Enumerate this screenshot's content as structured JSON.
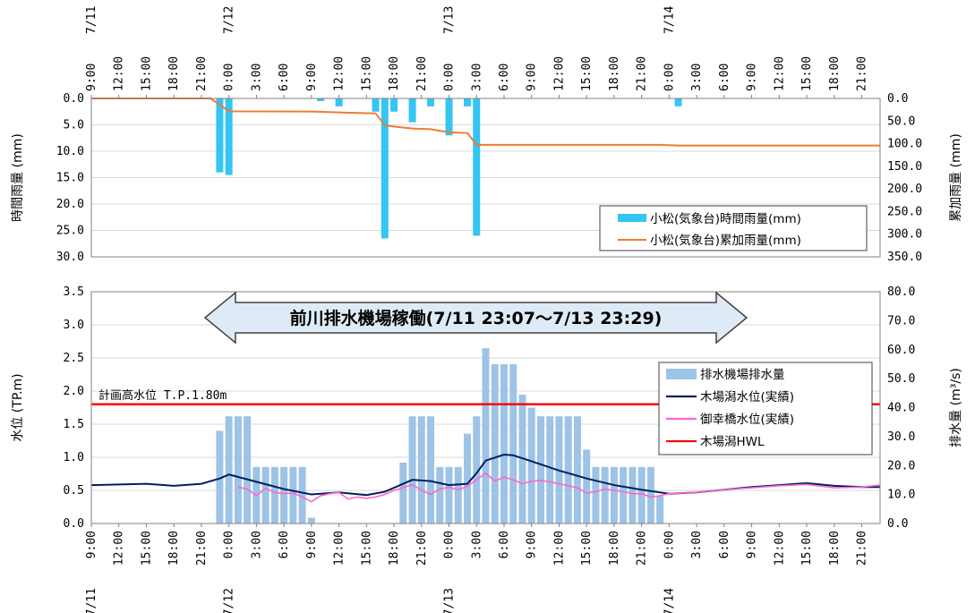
{
  "chart_data": [
    {
      "type": "bar",
      "panel": "rainfall",
      "y_left_label": "時間雨量 (mm)",
      "y_right_label": "累加雨量 (mm)",
      "y_left_ticks": [
        "0.0",
        "5.0",
        "10.0",
        "15.0",
        "20.0",
        "25.0",
        "30.0"
      ],
      "y_right_ticks": [
        "0.0",
        "50.0",
        "100.0",
        "150.0",
        "200.0",
        "250.0",
        "300.0",
        "350.0"
      ],
      "ylim_left": [
        0,
        30
      ],
      "ylim_right": [
        0,
        350
      ],
      "y_left_inverted": true,
      "y_right_inverted": true,
      "x_time_labels": [
        "9:00",
        "12:00",
        "15:00",
        "18:00",
        "21:00",
        "0:00",
        "3:00",
        "6:00",
        "9:00",
        "12:00",
        "15:00",
        "18:00",
        "21:00",
        "0:00",
        "3:00",
        "6:00",
        "9:00",
        "12:00",
        "15:00",
        "18:00",
        "21:00",
        "0:00",
        "3:00",
        "6:00",
        "9:00",
        "12:00",
        "15:00",
        "18:00",
        "21:00"
      ],
      "x_date_labels": [
        {
          "label": "7/11",
          "at": "7/11 9:00"
        },
        {
          "label": "7/12",
          "at": "7/12 0:00"
        },
        {
          "label": "7/13",
          "at": "7/13 0:00"
        },
        {
          "label": "7/14",
          "at": "7/14 0:00"
        }
      ],
      "x_range": [
        "7/11 9:00",
        "7/14 23:00"
      ],
      "legend": [
        "小松(気象台)時間雨量(mm)",
        "小松(気象台)累加雨量(mm)"
      ],
      "legend_position": "bottom-right",
      "series": [
        {
          "name": "小松(気象台)時間雨量(mm)",
          "kind": "bar",
          "color": "#33c5f3",
          "points": [
            {
              "x": "7/11 23:00",
              "y": 14.0
            },
            {
              "x": "7/12 0:00",
              "y": 14.5
            },
            {
              "x": "7/12 10:00",
              "y": 0.5
            },
            {
              "x": "7/12 12:00",
              "y": 1.5
            },
            {
              "x": "7/12 16:00",
              "y": 2.5
            },
            {
              "x": "7/12 17:00",
              "y": 26.5
            },
            {
              "x": "7/12 18:00",
              "y": 2.5
            },
            {
              "x": "7/12 20:00",
              "y": 4.5
            },
            {
              "x": "7/12 22:00",
              "y": 1.5
            },
            {
              "x": "7/13 0:00",
              "y": 7.0
            },
            {
              "x": "7/13 2:00",
              "y": 1.5
            },
            {
              "x": "7/13 3:00",
              "y": 26.0
            },
            {
              "x": "7/14 1:00",
              "y": 1.5
            }
          ]
        },
        {
          "name": "小松(気象台)累加雨量(mm)",
          "kind": "line",
          "color": "#ed7d31",
          "points": [
            {
              "x": "7/11 9:00",
              "y": 0
            },
            {
              "x": "7/11 22:00",
              "y": 0
            },
            {
              "x": "7/11 23:00",
              "y": 14
            },
            {
              "x": "7/12 0:00",
              "y": 28.5
            },
            {
              "x": "7/12 9:00",
              "y": 29
            },
            {
              "x": "7/12 12:00",
              "y": 31
            },
            {
              "x": "7/12 16:00",
              "y": 33
            },
            {
              "x": "7/12 17:00",
              "y": 59.5
            },
            {
              "x": "7/12 18:00",
              "y": 62
            },
            {
              "x": "7/12 20:00",
              "y": 66.5
            },
            {
              "x": "7/12 22:00",
              "y": 68
            },
            {
              "x": "7/13 0:00",
              "y": 75
            },
            {
              "x": "7/13 2:00",
              "y": 76.5
            },
            {
              "x": "7/13 3:00",
              "y": 102.5
            },
            {
              "x": "7/13 23:00",
              "y": 102.5
            },
            {
              "x": "7/14 1:00",
              "y": 104
            },
            {
              "x": "7/14 23:00",
              "y": 104
            }
          ]
        }
      ]
    },
    {
      "type": "bar",
      "panel": "water_level",
      "y_left_label": "水位 (TP.m)",
      "y_right_label": "排水量 (m³/s)",
      "y_left_ticks": [
        "0.0",
        "0.5",
        "1.0",
        "1.5",
        "2.0",
        "2.5",
        "3.0",
        "3.5"
      ],
      "y_right_ticks": [
        "0.0",
        "10.0",
        "20.0",
        "30.0",
        "40.0",
        "50.0",
        "60.0",
        "70.0",
        "80.0"
      ],
      "ylim_left": [
        0,
        3.5
      ],
      "ylim_right": [
        0,
        80
      ],
      "x_time_labels": [
        "9:00",
        "12:00",
        "15:00",
        "18:00",
        "21:00",
        "0:00",
        "3:00",
        "6:00",
        "9:00",
        "12:00",
        "15:00",
        "18:00",
        "21:00",
        "0:00",
        "3:00",
        "6:00",
        "9:00",
        "12:00",
        "15:00",
        "18:00",
        "21:00",
        "0:00",
        "3:00",
        "6:00",
        "9:00",
        "12:00",
        "15:00",
        "18:00",
        "21:00"
      ],
      "x_date_labels": [
        {
          "label": "7/11",
          "at": "7/11 9:00"
        },
        {
          "label": "7/12",
          "at": "7/12 0:00"
        },
        {
          "label": "7/13",
          "at": "7/13 0:00"
        },
        {
          "label": "7/14",
          "at": "7/14 0:00"
        }
      ],
      "x_range": [
        "7/11 9:00",
        "7/14 23:00"
      ],
      "annotation_banner": "前川排水機場稼働(7/11 23:07～7/13 23:29)",
      "annotation_hwl": "計画高水位 T.P.1.80m",
      "legend": [
        "排水機場排水量",
        "木場潟水位(実績)",
        "御幸橋水位(実績)",
        "木場潟HWL"
      ],
      "legend_position": "right",
      "series": [
        {
          "name": "排水機場排水量",
          "kind": "bar",
          "axis": "right",
          "color": "#9dc3e6",
          "points": [
            {
              "x": "7/11 23:00",
              "y": 32
            },
            {
              "x": "7/12 0:00",
              "y": 37
            },
            {
              "x": "7/12 1:00",
              "y": 37
            },
            {
              "x": "7/12 2:00",
              "y": 37
            },
            {
              "x": "7/12 3:00",
              "y": 19.5
            },
            {
              "x": "7/12 4:00",
              "y": 19.5
            },
            {
              "x": "7/12 5:00",
              "y": 19.5
            },
            {
              "x": "7/12 6:00",
              "y": 19.5
            },
            {
              "x": "7/12 7:00",
              "y": 19.5
            },
            {
              "x": "7/12 8:00",
              "y": 19.5
            },
            {
              "x": "7/12 9:00",
              "y": 2
            },
            {
              "x": "7/12 19:00",
              "y": 21
            },
            {
              "x": "7/12 20:00",
              "y": 37
            },
            {
              "x": "7/12 21:00",
              "y": 37
            },
            {
              "x": "7/12 22:00",
              "y": 37
            },
            {
              "x": "7/12 23:00",
              "y": 19.5
            },
            {
              "x": "7/13 0:00",
              "y": 19.5
            },
            {
              "x": "7/13 1:00",
              "y": 19.5
            },
            {
              "x": "7/13 2:00",
              "y": 31
            },
            {
              "x": "7/13 3:00",
              "y": 37
            },
            {
              "x": "7/13 4:00",
              "y": 60.5
            },
            {
              "x": "7/13 5:00",
              "y": 55
            },
            {
              "x": "7/13 6:00",
              "y": 55
            },
            {
              "x": "7/13 7:00",
              "y": 55
            },
            {
              "x": "7/13 8:00",
              "y": 44.5
            },
            {
              "x": "7/13 9:00",
              "y": 40
            },
            {
              "x": "7/13 10:00",
              "y": 37
            },
            {
              "x": "7/13 11:00",
              "y": 37
            },
            {
              "x": "7/13 12:00",
              "y": 37
            },
            {
              "x": "7/13 13:00",
              "y": 37
            },
            {
              "x": "7/13 14:00",
              "y": 37
            },
            {
              "x": "7/13 15:00",
              "y": 25.5
            },
            {
              "x": "7/13 16:00",
              "y": 19.5
            },
            {
              "x": "7/13 17:00",
              "y": 19.5
            },
            {
              "x": "7/13 18:00",
              "y": 19.5
            },
            {
              "x": "7/13 19:00",
              "y": 19.5
            },
            {
              "x": "7/13 20:00",
              "y": 19.5
            },
            {
              "x": "7/13 21:00",
              "y": 19.5
            },
            {
              "x": "7/13 22:00",
              "y": 19.5
            },
            {
              "x": "7/13 23:00",
              "y": 9.5
            }
          ]
        },
        {
          "name": "木場潟水位(実績)",
          "kind": "line",
          "axis": "left",
          "color": "#002060",
          "points": [
            {
              "x": "7/11 9:00",
              "y": 0.58
            },
            {
              "x": "7/11 12:00",
              "y": 0.59
            },
            {
              "x": "7/11 15:00",
              "y": 0.6
            },
            {
              "x": "7/11 18:00",
              "y": 0.57
            },
            {
              "x": "7/11 21:00",
              "y": 0.6
            },
            {
              "x": "7/11 23:00",
              "y": 0.68
            },
            {
              "x": "7/12 0:00",
              "y": 0.74
            },
            {
              "x": "7/12 3:00",
              "y": 0.63
            },
            {
              "x": "7/12 6:00",
              "y": 0.52
            },
            {
              "x": "7/12 9:00",
              "y": 0.44
            },
            {
              "x": "7/12 12:00",
              "y": 0.47
            },
            {
              "x": "7/12 15:00",
              "y": 0.43
            },
            {
              "x": "7/12 17:00",
              "y": 0.48
            },
            {
              "x": "7/12 18:00",
              "y": 0.54
            },
            {
              "x": "7/12 20:00",
              "y": 0.66
            },
            {
              "x": "7/12 22:00",
              "y": 0.64
            },
            {
              "x": "7/13 0:00",
              "y": 0.58
            },
            {
              "x": "7/13 2:00",
              "y": 0.6
            },
            {
              "x": "7/13 3:00",
              "y": 0.76
            },
            {
              "x": "7/13 4:00",
              "y": 0.95
            },
            {
              "x": "7/13 6:00",
              "y": 1.04
            },
            {
              "x": "7/13 7:00",
              "y": 1.03
            },
            {
              "x": "7/13 9:00",
              "y": 0.94
            },
            {
              "x": "7/13 12:00",
              "y": 0.8
            },
            {
              "x": "7/13 15:00",
              "y": 0.68
            },
            {
              "x": "7/13 18:00",
              "y": 0.58
            },
            {
              "x": "7/13 21:00",
              "y": 0.51
            },
            {
              "x": "7/14 0:00",
              "y": 0.45
            },
            {
              "x": "7/14 3:00",
              "y": 0.47
            },
            {
              "x": "7/14 6:00",
              "y": 0.51
            },
            {
              "x": "7/14 9:00",
              "y": 0.55
            },
            {
              "x": "7/14 12:00",
              "y": 0.58
            },
            {
              "x": "7/14 15:00",
              "y": 0.61
            },
            {
              "x": "7/14 18:00",
              "y": 0.57
            },
            {
              "x": "7/14 21:00",
              "y": 0.55
            },
            {
              "x": "7/14 23:00",
              "y": 0.55
            }
          ]
        },
        {
          "name": "御幸橋水位(実績)",
          "kind": "line",
          "axis": "left",
          "color": "#ff66cc",
          "points": [
            {
              "x": "7/12 1:00",
              "y": 0.55
            },
            {
              "x": "7/12 2:00",
              "y": 0.52
            },
            {
              "x": "7/12 3:00",
              "y": 0.42
            },
            {
              "x": "7/12 4:00",
              "y": 0.53
            },
            {
              "x": "7/12 5:00",
              "y": 0.47
            },
            {
              "x": "7/12 6:00",
              "y": 0.45
            },
            {
              "x": "7/12 7:00",
              "y": 0.46
            },
            {
              "x": "7/12 8:00",
              "y": 0.4
            },
            {
              "x": "7/12 9:00",
              "y": 0.33
            },
            {
              "x": "7/12 10:00",
              "y": 0.42
            },
            {
              "x": "7/12 11:00",
              "y": 0.45
            },
            {
              "x": "7/12 12:00",
              "y": 0.47
            },
            {
              "x": "7/12 13:00",
              "y": 0.37
            },
            {
              "x": "7/12 14:00",
              "y": 0.4
            },
            {
              "x": "7/12 15:00",
              "y": 0.38
            },
            {
              "x": "7/12 16:00",
              "y": 0.4
            },
            {
              "x": "7/12 17:00",
              "y": 0.44
            },
            {
              "x": "7/12 18:00",
              "y": 0.5
            },
            {
              "x": "7/12 19:00",
              "y": 0.54
            },
            {
              "x": "7/12 20:00",
              "y": 0.59
            },
            {
              "x": "7/12 21:00",
              "y": 0.5
            },
            {
              "x": "7/12 22:00",
              "y": 0.44
            },
            {
              "x": "7/12 23:00",
              "y": 0.52
            },
            {
              "x": "7/13 0:00",
              "y": 0.55
            },
            {
              "x": "7/13 1:00",
              "y": 0.51
            },
            {
              "x": "7/13 2:00",
              "y": 0.56
            },
            {
              "x": "7/13 3:00",
              "y": 0.66
            },
            {
              "x": "7/13 4:00",
              "y": 0.76
            },
            {
              "x": "7/13 5:00",
              "y": 0.64
            },
            {
              "x": "7/13 6:00",
              "y": 0.7
            },
            {
              "x": "7/13 7:00",
              "y": 0.66
            },
            {
              "x": "7/13 8:00",
              "y": 0.6
            },
            {
              "x": "7/13 9:00",
              "y": 0.64
            },
            {
              "x": "7/13 10:00",
              "y": 0.65
            },
            {
              "x": "7/13 11:00",
              "y": 0.63
            },
            {
              "x": "7/13 12:00",
              "y": 0.6
            },
            {
              "x": "7/13 13:00",
              "y": 0.57
            },
            {
              "x": "7/13 14:00",
              "y": 0.54
            },
            {
              "x": "7/13 15:00",
              "y": 0.46
            },
            {
              "x": "7/13 16:00",
              "y": 0.48
            },
            {
              "x": "7/13 17:00",
              "y": 0.52
            },
            {
              "x": "7/13 18:00",
              "y": 0.5
            },
            {
              "x": "7/13 19:00",
              "y": 0.48
            },
            {
              "x": "7/13 20:00",
              "y": 0.45
            },
            {
              "x": "7/13 21:00",
              "y": 0.45
            },
            {
              "x": "7/13 22:00",
              "y": 0.4
            },
            {
              "x": "7/13 23:00",
              "y": 0.42
            },
            {
              "x": "7/14 0:00",
              "y": 0.45
            },
            {
              "x": "7/14 3:00",
              "y": 0.47
            },
            {
              "x": "7/14 6:00",
              "y": 0.51
            },
            {
              "x": "7/14 9:00",
              "y": 0.54
            },
            {
              "x": "7/14 12:00",
              "y": 0.57
            },
            {
              "x": "7/14 15:00",
              "y": 0.59
            },
            {
              "x": "7/14 18:00",
              "y": 0.54
            },
            {
              "x": "7/14 21:00",
              "y": 0.55
            },
            {
              "x": "7/14 23:00",
              "y": 0.58
            }
          ]
        },
        {
          "name": "木場潟HWL",
          "kind": "hline",
          "axis": "left",
          "color": "#ff0000",
          "y": 1.8
        }
      ]
    }
  ]
}
